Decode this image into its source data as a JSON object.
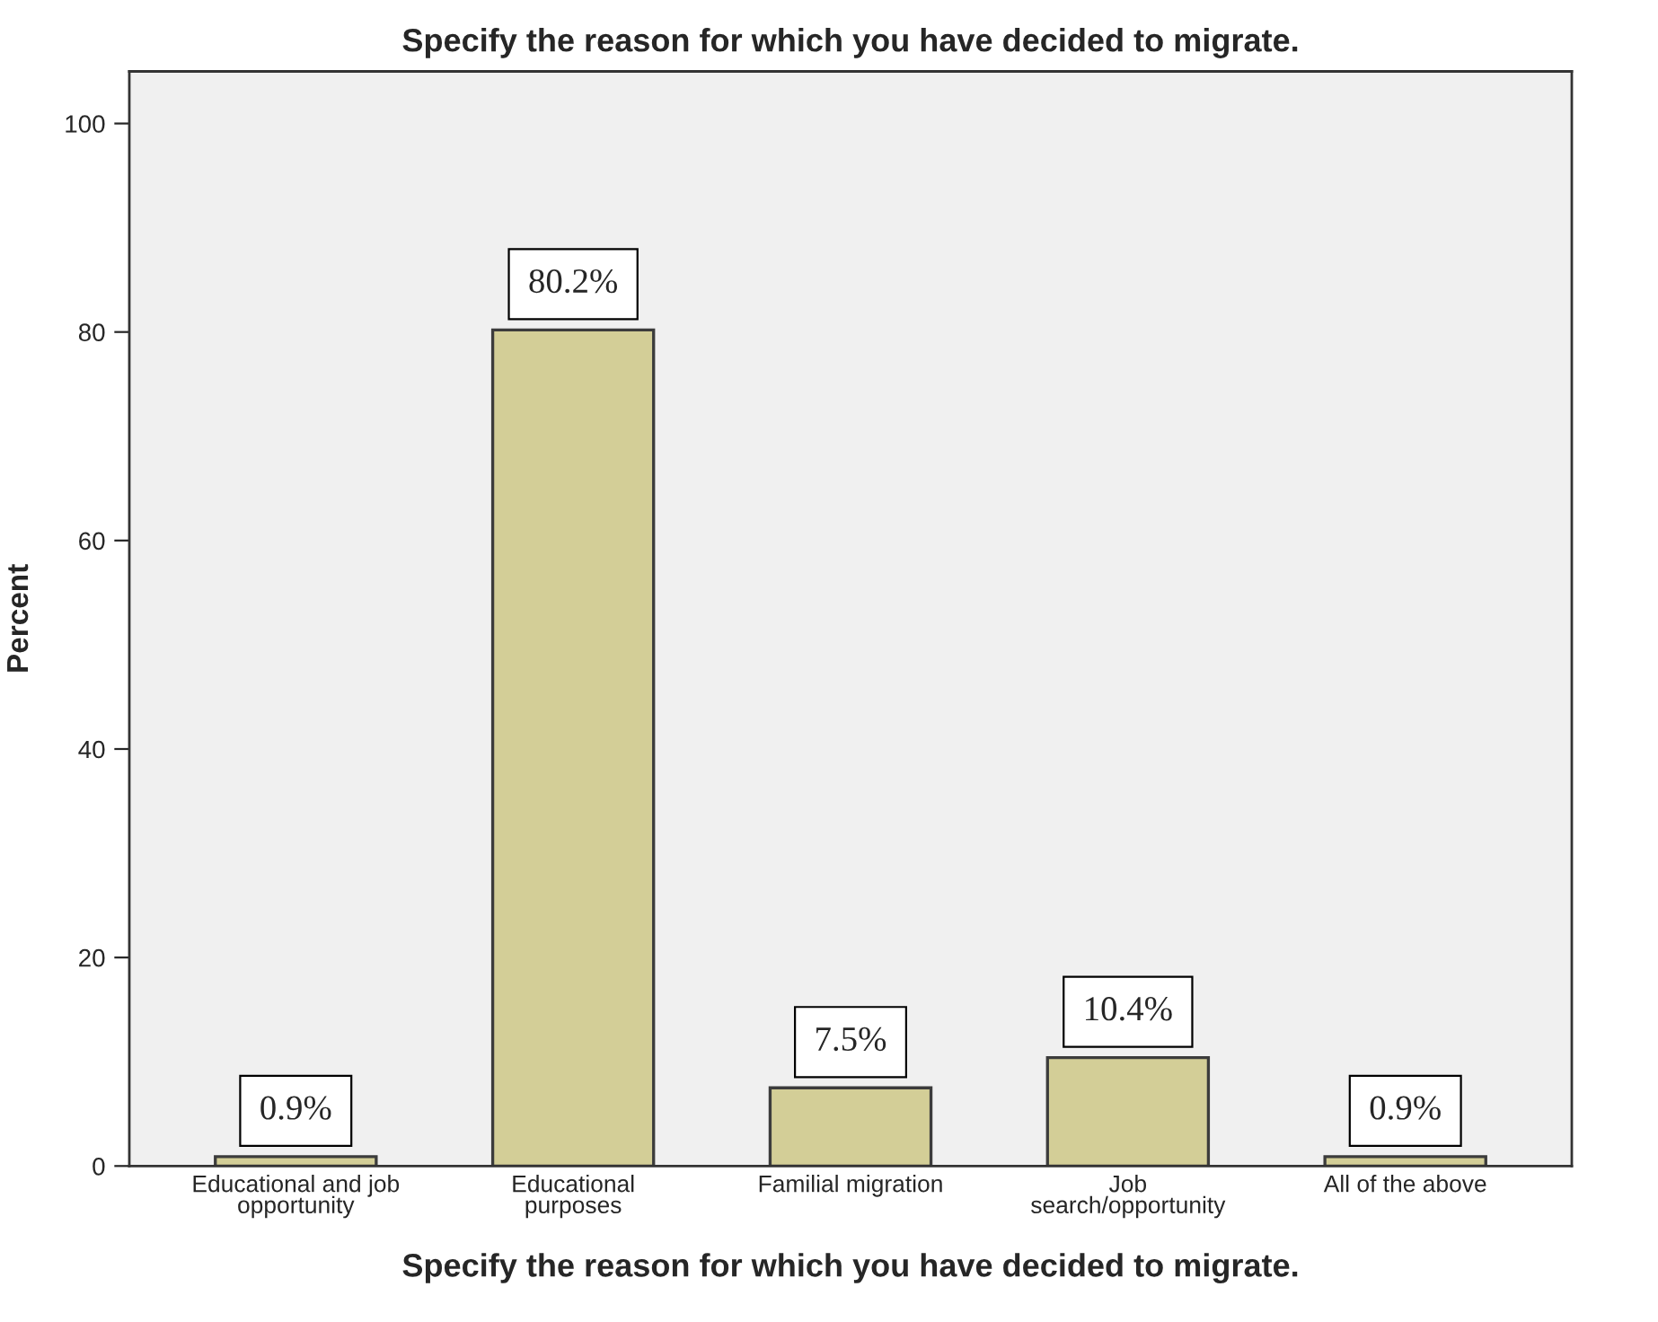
{
  "chart_data": {
    "type": "bar",
    "title": "Specify the reason for which you have decided to migrate.",
    "xlabel": "Specify the reason for which you have decided to migrate.",
    "ylabel": "Percent",
    "categories": [
      "Educational and job\nopportunity",
      "Educational\npurposes",
      "Familial migration",
      "Job\nsearch/opportunity",
      "All of the above"
    ],
    "values": [
      0.9,
      80.2,
      7.5,
      10.4,
      0.9
    ],
    "value_labels": [
      "0.9%",
      "80.2%",
      "7.5%",
      "10.4%",
      "0.9%"
    ],
    "color": "#d3ce97",
    "ylim": [
      0,
      105
    ],
    "yticks": [
      0,
      20,
      40,
      60,
      80,
      100
    ],
    "grid": false,
    "legend": false
  }
}
